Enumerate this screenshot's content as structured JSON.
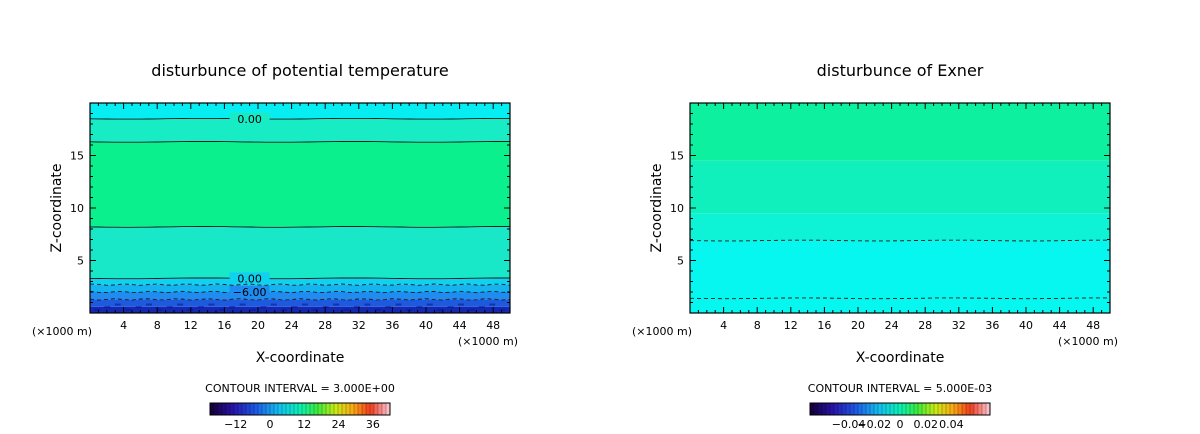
{
  "chart_data": [
    {
      "type": "heatmap",
      "title": "disturbunce of potential temperature",
      "xlabel": "X-coordinate",
      "ylabel": "Z-coordinate",
      "x_unit_left": "(×1000 m)",
      "x_unit_right": "(×1000 m)",
      "xlim": [
        0,
        50
      ],
      "ylim": [
        0,
        20
      ],
      "x_ticks": [
        4,
        8,
        12,
        16,
        20,
        24,
        28,
        32,
        36,
        40,
        44,
        48
      ],
      "y_ticks": [
        5,
        10,
        15
      ],
      "contour_interval": "CONTOUR INTERVAL = 3.000E+00",
      "colorbar_ticks": [
        "−12",
        "0",
        "12",
        "24",
        "36"
      ],
      "colorbar_range": [
        -21,
        42
      ],
      "contours": [
        {
          "z": 18.5,
          "style": "solid",
          "label": "0.00"
        },
        {
          "z": 16.3,
          "style": "solid",
          "label": ""
        },
        {
          "z": 8.2,
          "style": "solid",
          "label": ""
        },
        {
          "z": 3.3,
          "style": "solid",
          "label": "0.00"
        },
        {
          "z": 2.7,
          "style": "dashed",
          "label": ""
        },
        {
          "z": 2.0,
          "style": "dashed",
          "label": "−6.00"
        },
        {
          "z": 1.3,
          "style": "dashed",
          "label": ""
        }
      ],
      "fill_bands": [
        {
          "from": 0.0,
          "to": 0.6,
          "color": "#1428b4"
        },
        {
          "from": 0.6,
          "to": 1.3,
          "color": "#1e5ade"
        },
        {
          "from": 1.3,
          "to": 2.0,
          "color": "#1e8cf0"
        },
        {
          "from": 2.0,
          "to": 2.7,
          "color": "#14b4f0"
        },
        {
          "from": 2.7,
          "to": 3.3,
          "color": "#10d2ee"
        },
        {
          "from": 3.3,
          "to": 8.2,
          "color": "#18e8c8"
        },
        {
          "from": 8.2,
          "to": 16.3,
          "color": "#0af08c"
        },
        {
          "from": 16.3,
          "to": 18.5,
          "color": "#18ecc4"
        },
        {
          "from": 18.5,
          "to": 20.0,
          "color": "#06eef2"
        }
      ]
    },
    {
      "type": "heatmap",
      "title": "disturbunce of Exner",
      "xlabel": "X-coordinate",
      "ylabel": "Z-coordinate",
      "x_unit_left": "(×1000 m)",
      "x_unit_right": "(×1000 m)",
      "xlim": [
        0,
        50
      ],
      "ylim": [
        0,
        20
      ],
      "x_ticks": [
        4,
        8,
        12,
        16,
        20,
        24,
        28,
        32,
        36,
        40,
        44,
        48
      ],
      "y_ticks": [
        5,
        10,
        15
      ],
      "contour_interval": "CONTOUR INTERVAL = 5.000E-03",
      "colorbar_ticks": [
        "−0.04",
        "−0.02",
        "0",
        "0.02",
        "0.04"
      ],
      "colorbar_range": [
        -0.07,
        0.07
      ],
      "contours": [
        {
          "z": 6.9,
          "style": "dashed",
          "label": ""
        },
        {
          "z": 1.4,
          "style": "dashed",
          "label": ""
        }
      ],
      "fill_bands": [
        {
          "from": 0.0,
          "to": 6.9,
          "color": "#06f6f0"
        },
        {
          "from": 6.9,
          "to": 9.5,
          "color": "#0ef2d6"
        },
        {
          "from": 9.5,
          "to": 14.5,
          "color": "#10f0bc"
        },
        {
          "from": 14.5,
          "to": 20.0,
          "color": "#0cf0a0"
        }
      ]
    }
  ]
}
